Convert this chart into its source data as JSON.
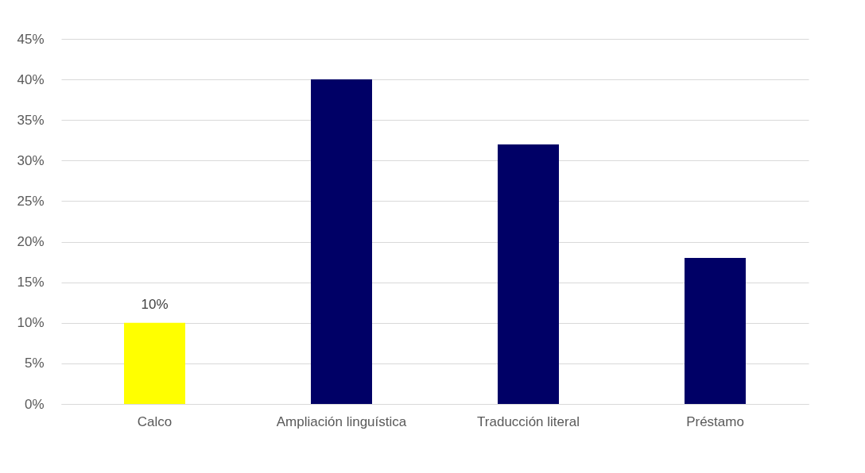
{
  "chart_data": {
    "type": "bar",
    "categories": [
      "Calco",
      "Ampliación linguística",
      "Traducción literal",
      "Préstamo"
    ],
    "values": [
      10,
      40,
      32,
      18
    ],
    "colors": [
      "#ffff00",
      "#000066",
      "#000066",
      "#000066"
    ],
    "value_labels": [
      "10%",
      null,
      null,
      null
    ],
    "ylim": [
      0,
      45
    ],
    "yticks": [
      {
        "value": 0,
        "label": "0%"
      },
      {
        "value": 5,
        "label": "5%"
      },
      {
        "value": 10,
        "label": "10%"
      },
      {
        "value": 15,
        "label": "15%"
      },
      {
        "value": 20,
        "label": "20%"
      },
      {
        "value": 25,
        "label": "25%"
      },
      {
        "value": 30,
        "label": "30%"
      },
      {
        "value": 35,
        "label": "35%"
      },
      {
        "value": 40,
        "label": "40%"
      },
      {
        "value": 45,
        "label": "45%"
      }
    ],
    "grid": "y"
  }
}
